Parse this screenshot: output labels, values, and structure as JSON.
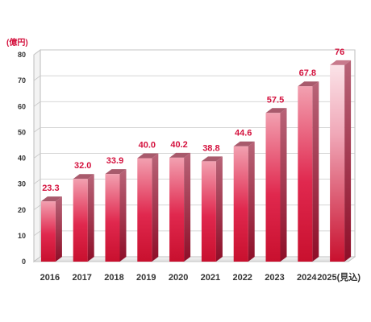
{
  "chart_data": {
    "type": "bar",
    "categories": [
      "2016",
      "2017",
      "2018",
      "2019",
      "2020",
      "2021",
      "2022",
      "2023",
      "2024",
      "2025(見込)"
    ],
    "values": [
      23.3,
      32.0,
      33.9,
      40.0,
      40.2,
      38.8,
      44.6,
      57.5,
      67.8,
      76
    ],
    "value_labels": [
      "23.3",
      "32.0",
      "33.9",
      "40.0",
      "40.2",
      "38.8",
      "44.6",
      "57.5",
      "67.8",
      "76"
    ],
    "y_unit": "(億円)",
    "y_ticks": [
      0,
      10,
      20,
      30,
      40,
      50,
      60,
      70,
      80
    ],
    "ylim": [
      0,
      80
    ],
    "grid": true,
    "style": "3d",
    "colors": {
      "bar_top": "#f2a0b0",
      "bar_bottom": "#c8102e",
      "forecast_top": "#fbe3e8",
      "label": "#d4123e",
      "grid": "#c8c8c8"
    }
  }
}
